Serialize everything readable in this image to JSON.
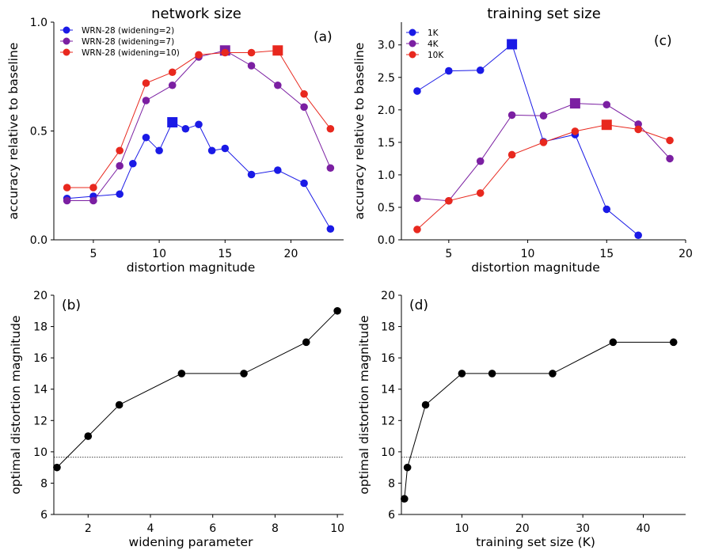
{
  "column_titles": [
    "network size",
    "training set size"
  ],
  "chart_data": [
    {
      "id": "a",
      "type": "line",
      "panel_label": "(a)",
      "xlabel": "distortion magnitude",
      "ylabel": "accuracy relative to baseline",
      "xlim": [
        2,
        24
      ],
      "ylim": [
        0.0,
        1.0
      ],
      "xticks": [
        5,
        10,
        15,
        20
      ],
      "yticks": [
        0.0,
        0.5,
        1.0
      ],
      "ytick_labels": [
        "0.0",
        "0.5",
        "1.0"
      ],
      "legend_position": "upper-left",
      "series": [
        {
          "name": "WRN-28 (widening=2)",
          "color": "#1a1ae6",
          "points": [
            [
              3,
              0.19
            ],
            [
              5,
              0.2
            ],
            [
              7,
              0.21
            ],
            [
              8,
              0.35
            ],
            [
              9,
              0.47
            ],
            [
              10,
              0.41
            ],
            [
              11,
              0.54
            ],
            [
              12,
              0.51
            ],
            [
              13,
              0.53
            ],
            [
              14,
              0.41
            ],
            [
              15,
              0.42
            ],
            [
              17,
              0.3
            ],
            [
              19,
              0.32
            ],
            [
              21,
              0.26
            ],
            [
              23,
              0.05
            ]
          ],
          "best": [
            11,
            0.54
          ]
        },
        {
          "name": "WRN-28 (widening=7)",
          "color": "#7b1fa2",
          "points": [
            [
              3,
              0.18
            ],
            [
              5,
              0.18
            ],
            [
              7,
              0.34
            ],
            [
              9,
              0.64
            ],
            [
              11,
              0.71
            ],
            [
              13,
              0.84
            ],
            [
              15,
              0.87
            ],
            [
              17,
              0.8
            ],
            [
              19,
              0.71
            ],
            [
              21,
              0.61
            ],
            [
              23,
              0.33
            ]
          ],
          "best": [
            15,
            0.87
          ]
        },
        {
          "name": "WRN-28 (widening=10)",
          "color": "#e8281e",
          "points": [
            [
              3,
              0.24
            ],
            [
              5,
              0.24
            ],
            [
              7,
              0.41
            ],
            [
              9,
              0.72
            ],
            [
              11,
              0.77
            ],
            [
              13,
              0.85
            ],
            [
              15,
              0.86
            ],
            [
              17,
              0.86
            ],
            [
              19,
              0.87
            ],
            [
              21,
              0.67
            ],
            [
              23,
              0.51
            ]
          ],
          "best": [
            19,
            0.87
          ]
        }
      ]
    },
    {
      "id": "c",
      "type": "line",
      "panel_label": "(c)",
      "xlabel": "distortion magnitude",
      "ylabel": "accuracy relative to baseline",
      "xlim": [
        2,
        20
      ],
      "ylim": [
        0.0,
        3.35
      ],
      "xticks": [
        5,
        10,
        15,
        20
      ],
      "yticks": [
        0.0,
        0.5,
        1.0,
        1.5,
        2.0,
        2.5,
        3.0
      ],
      "ytick_labels": [
        "0.0",
        "0.5",
        "1.0",
        "1.5",
        "2.0",
        "2.5",
        "3.0"
      ],
      "legend_position": "upper-left",
      "series": [
        {
          "name": "1K",
          "color": "#1a1ae6",
          "points": [
            [
              3,
              2.29
            ],
            [
              5,
              2.6
            ],
            [
              7,
              2.61
            ],
            [
              9,
              3.01
            ],
            [
              11,
              1.51
            ],
            [
              13,
              1.62
            ],
            [
              15,
              0.47
            ],
            [
              17,
              0.07
            ]
          ],
          "best": [
            9,
            3.01
          ]
        },
        {
          "name": "4K",
          "color": "#7b1fa2",
          "points": [
            [
              3,
              0.64
            ],
            [
              5,
              0.6
            ],
            [
              7,
              1.21
            ],
            [
              9,
              1.92
            ],
            [
              11,
              1.91
            ],
            [
              13,
              2.1
            ],
            [
              15,
              2.08
            ],
            [
              17,
              1.78
            ],
            [
              19,
              1.25
            ]
          ],
          "best": [
            13,
            2.1
          ]
        },
        {
          "name": "10K",
          "color": "#e8281e",
          "points": [
            [
              3,
              0.16
            ],
            [
              5,
              0.6
            ],
            [
              7,
              0.72
            ],
            [
              9,
              1.31
            ],
            [
              11,
              1.5
            ],
            [
              13,
              1.67
            ],
            [
              15,
              1.77
            ],
            [
              17,
              1.7
            ],
            [
              19,
              1.53
            ]
          ],
          "best": [
            15,
            1.77
          ]
        }
      ]
    },
    {
      "id": "b",
      "type": "line",
      "panel_label": "(b)",
      "xlabel": "widening parameter",
      "ylabel": "optimal distortion magnitude",
      "xlim": [
        0.9,
        10.2
      ],
      "ylim": [
        6,
        20
      ],
      "xticks": [
        2,
        4,
        6,
        8,
        10
      ],
      "yticks": [
        6,
        8,
        10,
        12,
        14,
        16,
        18,
        20
      ],
      "ytick_labels": [
        "6",
        "8",
        "10",
        "12",
        "14",
        "16",
        "18",
        "20"
      ],
      "reference_line_y": 9.65,
      "series": [
        {
          "color": "#000000",
          "points": [
            [
              1,
              9
            ],
            [
              2,
              11
            ],
            [
              3,
              13
            ],
            [
              5,
              15
            ],
            [
              7,
              15
            ],
            [
              9,
              17
            ],
            [
              10,
              19
            ]
          ]
        }
      ]
    },
    {
      "id": "d",
      "type": "line",
      "panel_label": "(d)",
      "xlabel": "training set size (K)",
      "ylabel": "optimal distortion magnitude",
      "xlim": [
        0,
        47
      ],
      "ylim": [
        6,
        20
      ],
      "xticks": [
        10,
        20,
        30,
        40
      ],
      "yticks": [
        6,
        8,
        10,
        12,
        14,
        16,
        18,
        20
      ],
      "ytick_labels": [
        "6",
        "8",
        "10",
        "12",
        "14",
        "16",
        "18",
        "20"
      ],
      "reference_line_y": 9.65,
      "series": [
        {
          "color": "#000000",
          "points": [
            [
              0.5,
              7
            ],
            [
              1,
              9
            ],
            [
              4,
              13
            ],
            [
              10,
              15
            ],
            [
              15,
              15
            ],
            [
              25,
              15
            ],
            [
              35,
              17
            ],
            [
              45,
              17
            ]
          ]
        }
      ]
    }
  ]
}
